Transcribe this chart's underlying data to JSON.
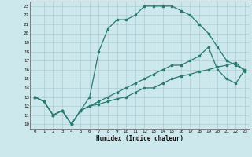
{
  "xlabel": "Humidex (Indice chaleur)",
  "bg_color": "#cce8ec",
  "grid_color": "#aacdd4",
  "line_color": "#2a7a72",
  "xlim": [
    -0.5,
    23.5
  ],
  "ylim": [
    9.5,
    23.5
  ],
  "yticks": [
    10,
    11,
    12,
    13,
    14,
    15,
    16,
    17,
    18,
    19,
    20,
    21,
    22,
    23
  ],
  "xticks": [
    0,
    1,
    2,
    3,
    4,
    5,
    6,
    7,
    8,
    9,
    10,
    11,
    12,
    13,
    14,
    15,
    16,
    17,
    18,
    19,
    20,
    21,
    22,
    23
  ],
  "line1_x": [
    0,
    1,
    2,
    3,
    4,
    5,
    6,
    7,
    8,
    9,
    10,
    11,
    12,
    13,
    14,
    15,
    16,
    17,
    18,
    19,
    20,
    21,
    22,
    23
  ],
  "line1_y": [
    13,
    12.5,
    11,
    11.5,
    10,
    11.5,
    13,
    18,
    20.5,
    21.5,
    21.5,
    22,
    23,
    23,
    23,
    23,
    22.5,
    22,
    21,
    20,
    18.5,
    17,
    16.5,
    16
  ],
  "line2_x": [
    0,
    1,
    2,
    3,
    4,
    5,
    6,
    7,
    8,
    9,
    10,
    11,
    12,
    13,
    14,
    15,
    16,
    17,
    18,
    19,
    20,
    21,
    22,
    23
  ],
  "line2_y": [
    13,
    12.5,
    11,
    11.5,
    10,
    11.5,
    12,
    12.5,
    13,
    13.5,
    14,
    14.5,
    15,
    15.5,
    16,
    16.5,
    16.5,
    17,
    17.5,
    18.5,
    16,
    15,
    14.5,
    16
  ],
  "line3_x": [
    0,
    1,
    2,
    3,
    4,
    5,
    6,
    7,
    8,
    9,
    10,
    11,
    12,
    13,
    14,
    15,
    16,
    17,
    18,
    19,
    20,
    21,
    22,
    23
  ],
  "line3_y": [
    13,
    12.5,
    11,
    11.5,
    10,
    11.5,
    12,
    12.2,
    12.5,
    12.8,
    13,
    13.5,
    14,
    14,
    14.5,
    15,
    15.3,
    15.5,
    15.8,
    16,
    16.3,
    16.5,
    16.8,
    15.8
  ]
}
